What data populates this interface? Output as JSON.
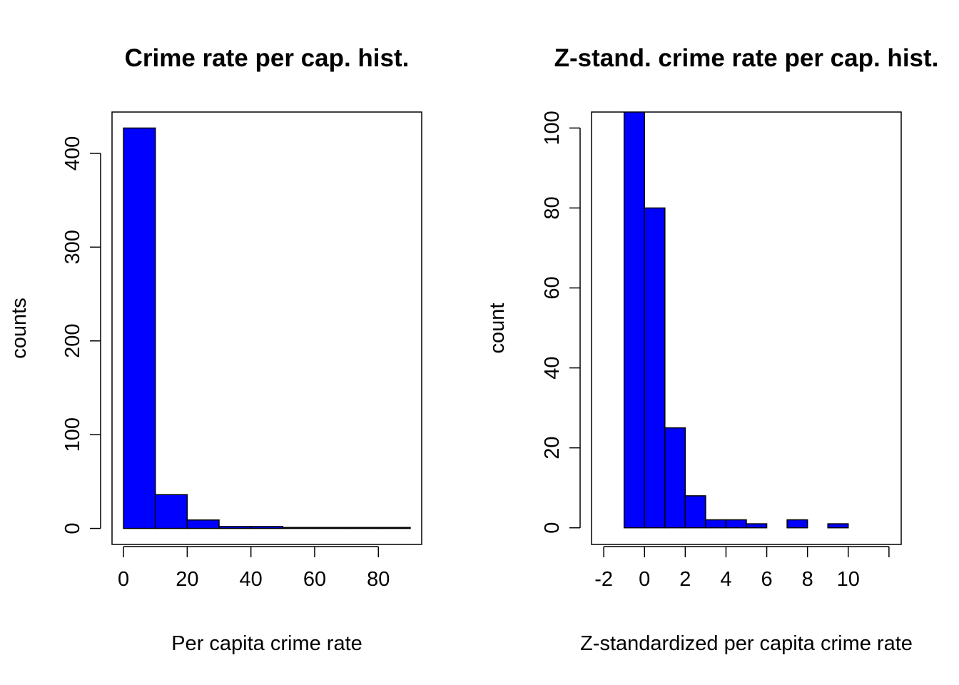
{
  "chart_data": [
    {
      "type": "bar",
      "subtype": "histogram",
      "title": "Crime rate per cap. hist.",
      "xlabel": "Per capita crime rate",
      "ylabel": "counts",
      "bar_color": "#0000ff",
      "bins": [
        [
          0,
          10
        ],
        [
          10,
          20
        ],
        [
          20,
          30
        ],
        [
          30,
          40
        ],
        [
          40,
          50
        ],
        [
          50,
          60
        ],
        [
          60,
          70
        ],
        [
          70,
          80
        ],
        [
          80,
          90
        ]
      ],
      "values": [
        427,
        36,
        9,
        2,
        2,
        1,
        1,
        1,
        1
      ],
      "xlim": [
        -3.6,
        93.6
      ],
      "ylim": [
        -17.08,
        444.08
      ],
      "xticks": [
        0,
        20,
        40,
        60,
        80
      ],
      "yticks": [
        0,
        100,
        200,
        300,
        400
      ],
      "grid": false,
      "legend": "none"
    },
    {
      "type": "bar",
      "subtype": "histogram",
      "title": "Z-stand. crime rate per cap. hist.",
      "xlabel": "Z-standardized per capita crime rate",
      "ylabel": "count",
      "bar_color": "#0000ff",
      "bins": [
        [
          -1,
          0
        ],
        [
          0,
          1
        ],
        [
          1,
          2
        ],
        [
          2,
          3
        ],
        [
          3,
          4
        ],
        [
          4,
          5
        ],
        [
          5,
          6
        ],
        [
          6,
          7
        ],
        [
          7,
          8
        ],
        [
          8,
          9
        ],
        [
          9,
          10
        ]
      ],
      "values": [
        104,
        80,
        25,
        8,
        2,
        2,
        1,
        0,
        2,
        0,
        1
      ],
      "xlim": [
        -2.6,
        12.6
      ],
      "ylim": [
        -4.16,
        104
      ],
      "xticks": [
        -2,
        0,
        2,
        4,
        6,
        8,
        10,
        12
      ],
      "xtick_labels": [
        "-2",
        "0",
        "2",
        "4",
        "6",
        "8",
        "10",
        ""
      ],
      "yticks": [
        0,
        20,
        40,
        60,
        80,
        100
      ],
      "grid": false,
      "legend": "none"
    }
  ]
}
